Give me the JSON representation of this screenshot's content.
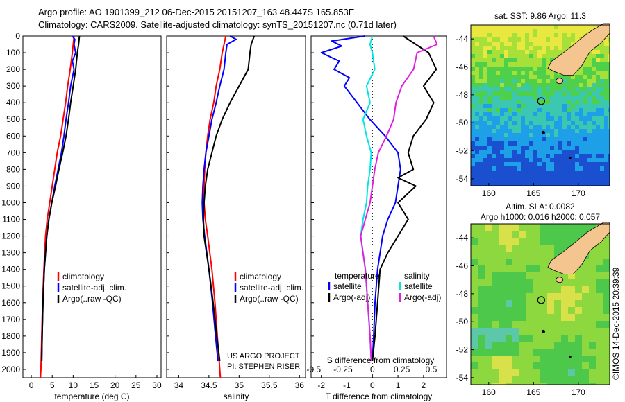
{
  "header": {
    "line1": "Argo profile: AO 1901399_212 06-Dec-2015 20151207_163 48.447S 165.853E",
    "line2": "Climatology: CARS2009. Satellite-adjusted climatology: synTS_20151207.nc (0.71d later)"
  },
  "colors": {
    "climatology": "#ff0000",
    "satellite": "#0000ff",
    "argo": "#000000",
    "salinity_satellite": "#00e5e5",
    "salinity_argo": "#e020e0",
    "land": "#f5c58f"
  },
  "chart_data": [
    {
      "id": "temperature",
      "type": "line",
      "xlabel": "temperature (deg C)",
      "xlim": [
        -2,
        31
      ],
      "xticks": [
        "0",
        "5",
        "10",
        "15",
        "20",
        "25",
        "30"
      ],
      "ylim": [
        2050,
        0
      ],
      "yticks": [
        "0",
        "100",
        "200",
        "300",
        "400",
        "500",
        "600",
        "700",
        "800",
        "900",
        "1000",
        "1100",
        "1200",
        "1300",
        "1400",
        "1500",
        "1600",
        "1700",
        "1800",
        "1900",
        "2000"
      ],
      "legend": [
        "climatology",
        "satellite-adj. clim.",
        "Argo(..raw -QC)"
      ],
      "series": [
        {
          "name": "climatology",
          "color": "red",
          "depth": [
            0,
            100,
            200,
            300,
            400,
            500,
            600,
            700,
            800,
            900,
            1000,
            1100,
            1200,
            1400,
            1600,
            1800,
            2000,
            2050
          ],
          "values": [
            10.2,
            9.8,
            9.3,
            8.7,
            8.2,
            7.6,
            7.0,
            6.2,
            5.6,
            5.0,
            4.4,
            3.8,
            3.4,
            3.0,
            2.7,
            2.5,
            2.3,
            2.2
          ]
        },
        {
          "name": "satellite-adj. clim.",
          "color": "blue",
          "depth": [
            0,
            20,
            50,
            100,
            150,
            200,
            300,
            400,
            500,
            600,
            700,
            800,
            900,
            1000,
            1100,
            1200,
            1400,
            1600,
            1800,
            1950
          ],
          "values": [
            9.8,
            10.4,
            10.2,
            10.6,
            9.8,
            10.2,
            9.4,
            8.9,
            8.3,
            7.8,
            7.2,
            6.4,
            5.6,
            4.9,
            4.2,
            3.7,
            3.1,
            2.8,
            2.6,
            2.5
          ]
        },
        {
          "name": "Argo(..raw -QC)",
          "color": "black",
          "depth": [
            0,
            50,
            100,
            200,
            300,
            400,
            500,
            600,
            700,
            800,
            900,
            1000,
            1100,
            1200,
            1400,
            1600,
            1800,
            1950
          ],
          "values": [
            11.5,
            11.3,
            11.0,
            10.6,
            10.0,
            9.4,
            8.9,
            8.3,
            7.5,
            6.6,
            5.8,
            4.9,
            4.2,
            3.7,
            3.1,
            2.8,
            2.6,
            2.5
          ]
        }
      ]
    },
    {
      "id": "salinity",
      "type": "line",
      "xlabel": "salinity",
      "xlim": [
        33.8,
        36.1
      ],
      "xticks": [
        "34",
        "34.5",
        "35",
        "35.5",
        "36"
      ],
      "ylim": [
        2050,
        0
      ],
      "legend": [
        "climatology",
        "satellite-adj. clim.",
        "Argo(..raw -QC)"
      ],
      "series": [
        {
          "name": "climatology",
          "color": "red",
          "depth": [
            0,
            100,
            200,
            300,
            400,
            500,
            600,
            700,
            800,
            900,
            1000,
            1100,
            1200,
            1400,
            1600,
            1800,
            2000,
            2050
          ],
          "values": [
            34.78,
            34.72,
            34.68,
            34.62,
            34.58,
            34.52,
            34.48,
            34.45,
            34.43,
            34.42,
            34.42,
            34.44,
            34.48,
            34.55,
            34.6,
            34.64,
            34.68,
            34.69
          ]
        },
        {
          "name": "satellite-adj. clim.",
          "color": "blue",
          "depth": [
            0,
            20,
            50,
            100,
            200,
            300,
            400,
            500,
            600,
            700,
            800,
            900,
            1000,
            1100,
            1200,
            1400,
            1600,
            1800,
            1950
          ],
          "values": [
            34.85,
            34.95,
            34.8,
            34.78,
            34.75,
            34.68,
            34.62,
            34.55,
            34.5,
            34.45,
            34.42,
            34.4,
            34.39,
            34.4,
            34.43,
            34.5,
            34.56,
            34.61,
            34.65
          ]
        },
        {
          "name": "Argo(..raw -QC)",
          "color": "black",
          "depth": [
            0,
            50,
            100,
            200,
            300,
            400,
            500,
            600,
            700,
            800,
            900,
            1000,
            1100,
            1200,
            1400,
            1600,
            1800,
            1950
          ],
          "values": [
            35.25,
            35.2,
            35.18,
            35.15,
            35.0,
            34.85,
            34.72,
            34.62,
            34.55,
            34.48,
            34.44,
            34.42,
            34.41,
            34.42,
            34.5,
            34.57,
            34.63,
            34.68
          ]
        }
      ],
      "annotation": [
        "US ARGO PROJECT",
        "PI: STEPHEN RISER"
      ]
    },
    {
      "id": "difference",
      "type": "line",
      "xlabel": "T difference from climatology",
      "xlabel_top": "S difference from climatology",
      "xlim": [
        -2.4,
        2.9
      ],
      "xticks": [
        "-2",
        "-1",
        "0",
        "1",
        "2"
      ],
      "sticks": [
        "-0.5",
        "-0.25",
        "0",
        "0.25",
        "0.5"
      ],
      "ylim": [
        2050,
        0
      ],
      "legend": {
        "temperature": [
          "satellite",
          "Argo(-adj)"
        ],
        "salinity": [
          "satellite",
          "Argo(-adj)"
        ]
      },
      "legend_headers": [
        "temperature",
        "salinity"
      ],
      "series": [
        {
          "name": "satellite",
          "group": "temperature",
          "color": "blue",
          "depth": [
            0,
            30,
            60,
            100,
            150,
            200,
            250,
            300,
            400,
            500,
            600,
            700,
            800,
            900,
            1000,
            1100,
            1200,
            1400,
            1600,
            1800,
            1950
          ],
          "values": [
            -0.3,
            -1.6,
            -1.2,
            -2.0,
            -1.3,
            -1.5,
            -0.9,
            -1.1,
            -0.6,
            -0.1,
            0.5,
            1.0,
            1.1,
            1.0,
            0.9,
            0.6,
            0.4,
            0.2,
            0.1,
            0.05,
            0.0
          ]
        },
        {
          "name": "Argo(-adj)",
          "group": "temperature",
          "color": "black",
          "depth": [
            0,
            50,
            100,
            200,
            300,
            400,
            500,
            600,
            700,
            800,
            850,
            900,
            1000,
            1100,
            1200,
            1300,
            1400,
            1600,
            1800,
            1950
          ],
          "values": [
            1.2,
            1.7,
            2.2,
            2.5,
            2.0,
            2.4,
            2.1,
            1.6,
            1.4,
            1.6,
            1.0,
            1.7,
            1.0,
            1.4,
            1.0,
            0.6,
            0.3,
            0.2,
            0.1,
            0.0
          ]
        },
        {
          "name": "satellite",
          "group": "salinity",
          "color": "cyan",
          "depth": [
            0,
            50,
            100,
            200,
            300,
            400,
            500,
            600,
            700,
            800,
            900,
            1000,
            1100,
            1200,
            1400,
            1600,
            1800,
            1950
          ],
          "values": [
            0.0,
            -0.02,
            0.0,
            0.02,
            -0.05,
            -0.02,
            -0.08,
            -0.05,
            -0.01,
            -0.02,
            -0.04,
            -0.05,
            -0.08,
            -0.1,
            -0.06,
            -0.04,
            -0.02,
            -0.01
          ]
        },
        {
          "name": "Argo(-adj)",
          "group": "salinity",
          "color": "magenta",
          "depth": [
            0,
            50,
            100,
            200,
            300,
            400,
            500,
            600,
            700,
            800,
            900,
            1000,
            1100,
            1200,
            1400,
            1600,
            1800,
            1950
          ],
          "values": [
            0.52,
            0.55,
            0.38,
            0.35,
            0.25,
            0.2,
            0.18,
            0.12,
            0.05,
            0.02,
            0.0,
            -0.02,
            -0.06,
            -0.1,
            -0.06,
            -0.04,
            -0.02,
            -0.01
          ]
        }
      ]
    },
    {
      "id": "sst-map",
      "type": "heatmap",
      "title": "sat. SST: 9.86 Argo: 11.3",
      "xlim": [
        158,
        173.5
      ],
      "ylim": [
        -54.5,
        -43
      ],
      "xticks": [
        "160",
        "165",
        "170"
      ],
      "yticks": [
        "-44",
        "-46",
        "-48",
        "-50",
        "-52",
        "-54"
      ],
      "argo_position": [
        165.853,
        -48.447
      ]
    },
    {
      "id": "sla-map",
      "type": "heatmap",
      "title_line1": "Altim. SLA: 0.0082",
      "title_line2": "Argo h1000: 0.016 h2000: 0.057",
      "xlim": [
        158,
        173.5
      ],
      "ylim": [
        -54.5,
        -43
      ],
      "xticks": [
        "160",
        "165",
        "170"
      ],
      "yticks": [
        "-44",
        "-46",
        "-48",
        "-50",
        "-52",
        "-54"
      ],
      "argo_position": [
        165.853,
        -48.447
      ]
    }
  ],
  "footer": {
    "credit": "©IMOS 14-Dec-2015 20:39:39"
  }
}
